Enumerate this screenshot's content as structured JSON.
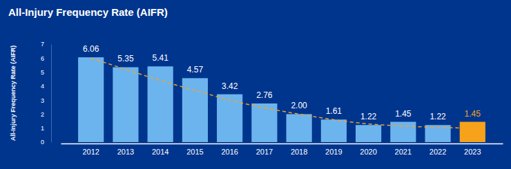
{
  "chart_data": {
    "type": "bar",
    "title": "All-Injury Frequency Rate (AIFR)",
    "y_label": "All-Injury Frequency Rate (AIFR)",
    "categories": [
      "2012",
      "2013",
      "2014",
      "2015",
      "2016",
      "2017",
      "2018",
      "2019",
      "2020",
      "2021",
      "2022",
      "2023"
    ],
    "ylim": [
      0,
      7
    ],
    "yticks": [
      0,
      1,
      2,
      3,
      4,
      5,
      6,
      7
    ],
    "grid": false,
    "data_labels": true,
    "series": [
      {
        "type": "bar",
        "color": "#6cb4ee",
        "colors": [
          "#6cb4ee",
          "#6cb4ee",
          "#6cb4ee",
          "#6cb4ee",
          "#6cb4ee",
          "#6cb4ee",
          "#6cb4ee",
          "#6cb4ee",
          "#6cb4ee",
          "#6cb4ee",
          "#6cb4ee",
          "#f7a21b"
        ],
        "values": [
          6.06,
          5.35,
          5.41,
          4.57,
          3.42,
          2.76,
          2.0,
          1.61,
          1.22,
          1.45,
          1.22,
          1.45
        ],
        "value_labels": [
          "6.06",
          "5.35",
          "5.41",
          "4.57",
          "3.42",
          "2.76",
          "2.00",
          "1.61",
          "1.22",
          "1.45",
          "1.22",
          "1.45"
        ]
      },
      {
        "type": "line",
        "line_style": "dashed",
        "color": "#f7a21b",
        "values": [
          6.0,
          5.2,
          4.4,
          3.7,
          3.0,
          2.45,
          2.0,
          1.6,
          1.3,
          1.15,
          1.05,
          1.0
        ]
      }
    ]
  }
}
